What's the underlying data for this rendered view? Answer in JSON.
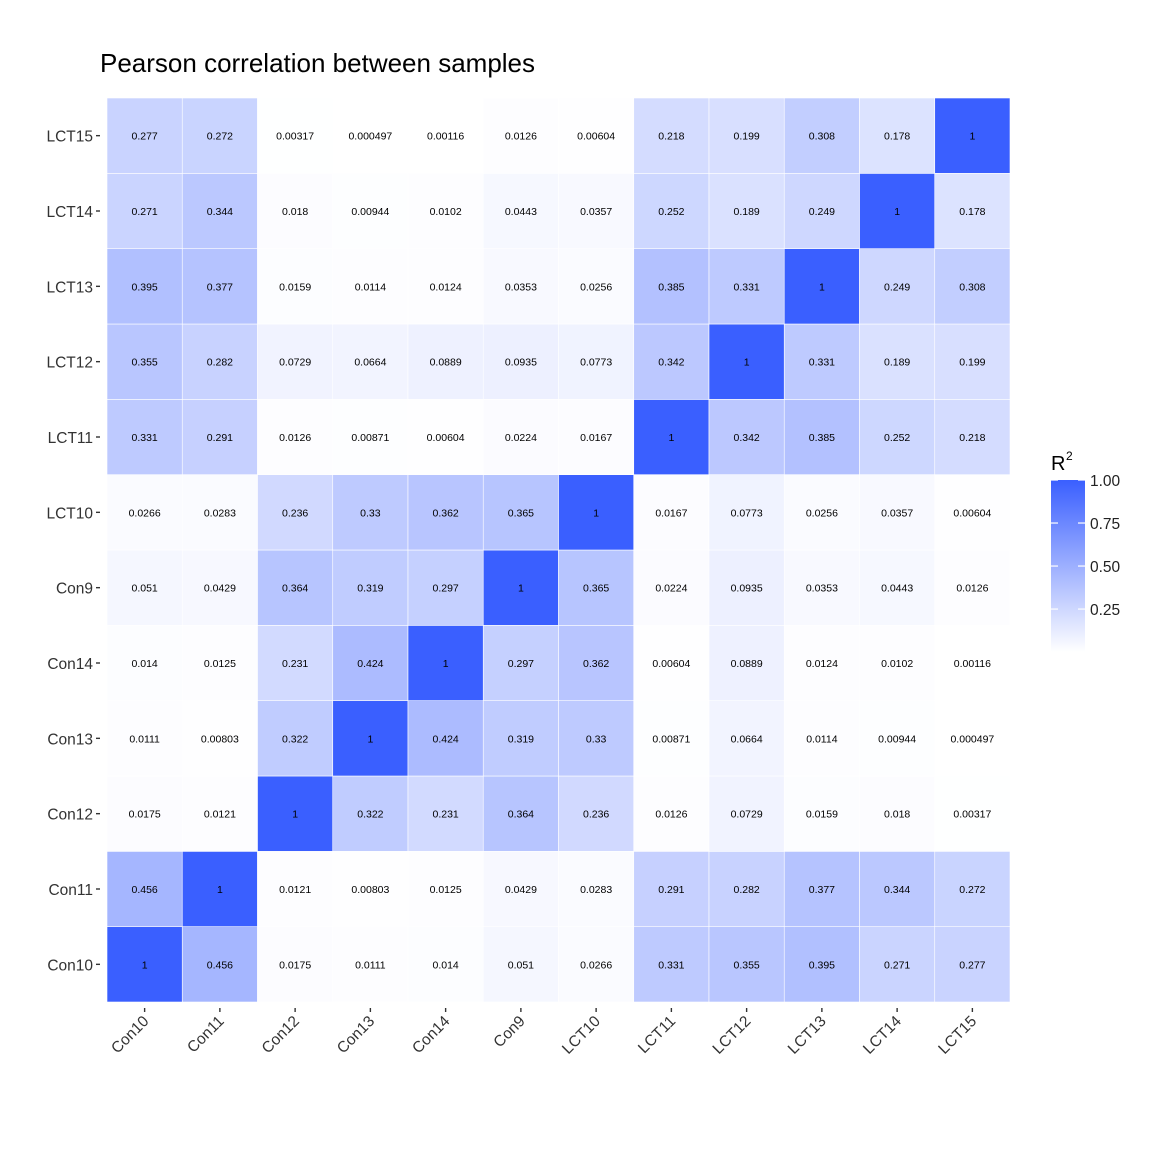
{
  "chart_data": {
    "type": "heatmap",
    "title": "Pearson correlation between samples",
    "x_categories": [
      "Con10",
      "Con11",
      "Con12",
      "Con13",
      "Con14",
      "Con9",
      "LCT10",
      "LCT11",
      "LCT12",
      "LCT13",
      "LCT14",
      "LCT15"
    ],
    "y_categories": [
      "Con10",
      "Con11",
      "Con12",
      "Con13",
      "Con14",
      "Con9",
      "LCT10",
      "LCT11",
      "LCT12",
      "LCT13",
      "LCT14",
      "LCT15"
    ],
    "matrix": [
      [
        1,
        0.456,
        0.0175,
        0.0111,
        0.014,
        0.051,
        0.0266,
        0.331,
        0.355,
        0.395,
        0.271,
        0.277
      ],
      [
        0.456,
        1,
        0.0121,
        0.00803,
        0.0125,
        0.0429,
        0.0283,
        0.291,
        0.282,
        0.377,
        0.344,
        0.272
      ],
      [
        0.0175,
        0.0121,
        1,
        0.322,
        0.231,
        0.364,
        0.236,
        0.0126,
        0.0729,
        0.0159,
        0.018,
        0.00317
      ],
      [
        0.0111,
        0.00803,
        0.322,
        1,
        0.424,
        0.319,
        0.33,
        0.00871,
        0.0664,
        0.0114,
        0.00944,
        0.000497
      ],
      [
        0.014,
        0.0125,
        0.231,
        0.424,
        1,
        0.297,
        0.362,
        0.00604,
        0.0889,
        0.0124,
        0.0102,
        0.00116
      ],
      [
        0.051,
        0.0429,
        0.364,
        0.319,
        0.297,
        1,
        0.365,
        0.0224,
        0.0935,
        0.0353,
        0.0443,
        0.0126
      ],
      [
        0.0266,
        0.0283,
        0.236,
        0.33,
        0.362,
        0.365,
        1,
        0.0167,
        0.0773,
        0.0256,
        0.0357,
        0.00604
      ],
      [
        0.331,
        0.291,
        0.0126,
        0.00871,
        0.00604,
        0.0224,
        0.0167,
        1,
        0.342,
        0.385,
        0.252,
        0.218
      ],
      [
        0.355,
        0.282,
        0.0729,
        0.0664,
        0.0889,
        0.0935,
        0.0773,
        0.342,
        1,
        0.331,
        0.189,
        0.199
      ],
      [
        0.395,
        0.377,
        0.0159,
        0.0114,
        0.0124,
        0.0353,
        0.0256,
        0.385,
        0.331,
        1,
        0.249,
        0.308
      ],
      [
        0.271,
        0.344,
        0.018,
        0.00944,
        0.0102,
        0.0443,
        0.0357,
        0.252,
        0.189,
        0.249,
        1,
        0.178
      ],
      [
        0.277,
        0.272,
        0.00317,
        0.000497,
        0.00116,
        0.0126,
        0.00604,
        0.218,
        0.199,
        0.308,
        0.178,
        1
      ]
    ],
    "legend": {
      "title": "R",
      "title_superscript": "2",
      "ticks": [
        "1.00",
        "0.75",
        "0.50",
        "0.25"
      ],
      "tick_values": [
        1.0,
        0.75,
        0.5,
        0.25
      ],
      "range": [
        0.000497,
        1
      ],
      "low_color": "#ffffff",
      "high_color": "#3a5fff",
      "placement": "right"
    },
    "grid": false
  }
}
